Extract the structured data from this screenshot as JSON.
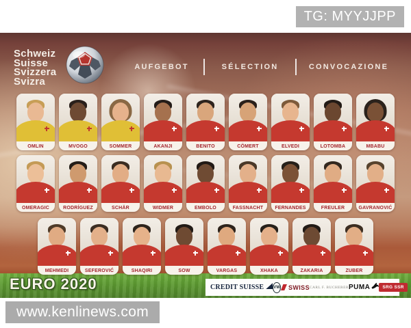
{
  "page": {
    "watermark_top": "TG: MYYJJPP",
    "watermark_bottom": "www.kenlinews.com"
  },
  "header": {
    "title_lines": [
      "Schweiz",
      "Suisse",
      "Svizzera",
      "Svizra"
    ],
    "menu": [
      "AUFGEBOT",
      "SÉLECTION",
      "CONVOCAZIONE"
    ],
    "ball_icon": "soccer-ball"
  },
  "colors": {
    "kits": {
      "gk": "#e0bf36",
      "field": "#c5392f"
    },
    "name_text": "#a3242c",
    "grass": "#5c9a31",
    "poster_top": "#5f3631",
    "srg_red": "#bf2b30"
  },
  "squad": {
    "rows": [
      {
        "players": [
          {
            "name": "OMLIN",
            "kit": "gk",
            "skin": "#e9b993",
            "hair": "#c79e56",
            "hairstyle": "short"
          },
          {
            "name": "MVOGO",
            "kit": "gk",
            "skin": "#6e4a33",
            "hair": "#2a201b",
            "hairstyle": "short"
          },
          {
            "name": "SOMMER",
            "kit": "gk",
            "skin": "#e6b28c",
            "hair": "#8a6844",
            "hairstyle": "long"
          },
          {
            "name": "AKANJI",
            "kit": "field",
            "skin": "#a5714e",
            "hair": "#241c18",
            "hairstyle": "short"
          },
          {
            "name": "BENITO",
            "kit": "field",
            "skin": "#d9a67c",
            "hair": "#2e241e",
            "hairstyle": "short"
          },
          {
            "name": "CÖMERT",
            "kit": "field",
            "skin": "#d7a377",
            "hair": "#2b211b",
            "hairstyle": "short"
          },
          {
            "name": "ELVEDI",
            "kit": "field",
            "skin": "#e7b58e",
            "hair": "#7d5a3a",
            "hairstyle": "short"
          },
          {
            "name": "LOTOMBA",
            "kit": "field",
            "skin": "#6b4730",
            "hair": "#231b16",
            "hairstyle": "short"
          },
          {
            "name": "MBABU",
            "kit": "field",
            "skin": "#7a5136",
            "hair": "#2b221c",
            "hairstyle": "long"
          }
        ]
      },
      {
        "players": [
          {
            "name": "OMERAGIC",
            "kit": "field",
            "skin": "#ecbf98",
            "hair": "#c49a55",
            "hairstyle": "short"
          },
          {
            "name": "RODRÍGUEZ",
            "kit": "field",
            "skin": "#cf9a6e",
            "hair": "#241d18",
            "hairstyle": "short"
          },
          {
            "name": "SCHÄR",
            "kit": "field",
            "skin": "#e2ad85",
            "hair": "#3a2c21",
            "hairstyle": "short"
          },
          {
            "name": "WIDMER",
            "kit": "field",
            "skin": "#e8b991",
            "hair": "#b8914f",
            "hairstyle": "short"
          },
          {
            "name": "EMBOLO",
            "kit": "field",
            "skin": "#6f4b33",
            "hair": "#221a15",
            "hairstyle": "short"
          },
          {
            "name": "FASSNACHT",
            "kit": "field",
            "skin": "#e3b08a",
            "hair": "#4a3828",
            "hairstyle": "short"
          },
          {
            "name": "FERNANDES",
            "kit": "field",
            "skin": "#7c5236",
            "hair": "#26201a",
            "hairstyle": "short"
          },
          {
            "name": "FREULER",
            "kit": "field",
            "skin": "#e0ac84",
            "hair": "#33281f",
            "hairstyle": "short"
          },
          {
            "name": "GAVRANOVIĆ",
            "kit": "field",
            "skin": "#e2af88",
            "hair": "#57432e",
            "hairstyle": "short"
          }
        ]
      },
      {
        "players": [
          {
            "name": "MEHMEDI",
            "kit": "field",
            "skin": "#e0ab83",
            "hair": "#4f3b28",
            "hairstyle": "short"
          },
          {
            "name": "SEFEROVIĆ",
            "kit": "field",
            "skin": "#e3b08a",
            "hair": "#3b2d22",
            "hairstyle": "short"
          },
          {
            "name": "SHAQIRI",
            "kit": "field",
            "skin": "#e6b28a",
            "hair": "#2e241c",
            "hairstyle": "short"
          },
          {
            "name": "SOW",
            "kit": "field",
            "skin": "#6e4a32",
            "hair": "#221b16",
            "hairstyle": "short"
          },
          {
            "name": "VARGAS",
            "kit": "field",
            "skin": "#dfa97f",
            "hair": "#2d231b",
            "hairstyle": "short"
          },
          {
            "name": "XHAKA",
            "kit": "field",
            "skin": "#e4b08a",
            "hair": "#26201a",
            "hairstyle": "short"
          },
          {
            "name": "ZAKARIA",
            "kit": "field",
            "skin": "#6d4a33",
            "hair": "#221b16",
            "hairstyle": "short"
          },
          {
            "name": "ZUBER",
            "kit": "field",
            "skin": "#e2ae86",
            "hair": "#3c2e22",
            "hairstyle": "short"
          }
        ]
      }
    ]
  },
  "footer": {
    "tournament": "EURO 2020",
    "sponsors": [
      {
        "id": "credit-suisse",
        "label": "CREDIT SUISSE"
      },
      {
        "id": "vw",
        "label": "VW"
      },
      {
        "id": "swiss",
        "label": "SWISS"
      },
      {
        "id": "carl-f-bucherer",
        "label": "CARL F. BUCHERER"
      },
      {
        "id": "puma",
        "label": "PUMA"
      },
      {
        "id": "srg-ssr",
        "label": "SRG SSR"
      }
    ]
  }
}
